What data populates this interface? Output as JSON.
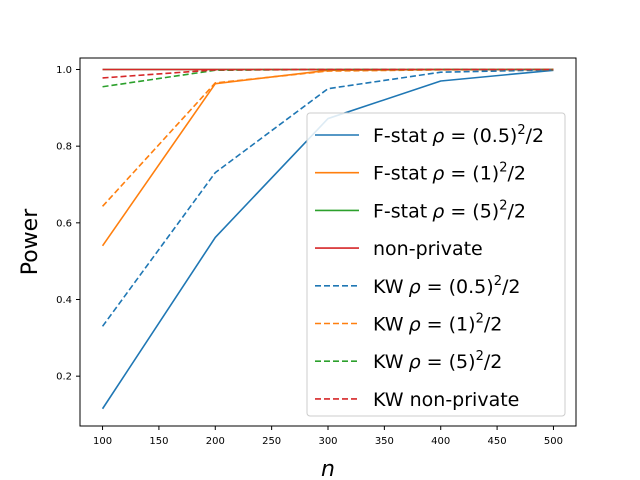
{
  "chart_data": {
    "type": "line",
    "title": "",
    "xlabel": "n",
    "ylabel": "Power",
    "x": [
      100,
      200,
      300,
      400,
      500
    ],
    "xlim": [
      80,
      520
    ],
    "ylim": [
      0.07,
      1.03
    ],
    "xticks": [
      100,
      150,
      200,
      250,
      300,
      350,
      400,
      450,
      500
    ],
    "yticks": [
      0.2,
      0.4,
      0.6,
      0.8,
      1.0
    ],
    "xtick_labels": [
      "100",
      "150",
      "200",
      "250",
      "300",
      "350",
      "400",
      "450",
      "500"
    ],
    "ytick_labels": [
      "0.2",
      "0.4",
      "0.6",
      "0.8",
      "1.0"
    ],
    "grid": false,
    "legend_position": "center-right",
    "series": [
      {
        "name": "F-stat",
        "rho_base": "(0.5)",
        "color": "#1f77b4",
        "dash": "solid",
        "values": [
          0.115,
          0.562,
          0.872,
          0.97,
          0.998
        ]
      },
      {
        "name": "F-stat",
        "rho_base": "(1)",
        "color": "#ff7f0e",
        "dash": "solid",
        "values": [
          0.54,
          0.963,
          0.998,
          1.0,
          1.0
        ]
      },
      {
        "name": "F-stat",
        "rho_base": "(5)",
        "color": "#2ca02c",
        "dash": "solid",
        "values": [
          1.0,
          1.0,
          1.0,
          1.0,
          1.0
        ]
      },
      {
        "name": "non-private",
        "rho_base": "",
        "color": "#d62728",
        "dash": "solid",
        "values": [
          1.0,
          1.0,
          1.0,
          1.0,
          1.0
        ]
      },
      {
        "name": "KW",
        "rho_base": "(0.5)",
        "color": "#1f77b4",
        "dash": "dashed",
        "values": [
          0.33,
          0.731,
          0.95,
          0.993,
          0.999
        ]
      },
      {
        "name": "KW",
        "rho_base": "(1)",
        "color": "#ff7f0e",
        "dash": "dashed",
        "values": [
          0.643,
          0.965,
          0.996,
          0.999,
          1.0
        ]
      },
      {
        "name": "KW",
        "rho_base": "(5)",
        "color": "#2ca02c",
        "dash": "dashed",
        "values": [
          0.955,
          0.998,
          1.0,
          1.0,
          1.0
        ]
      },
      {
        "name": "KW non-private",
        "rho_base": "",
        "color": "#d62728",
        "dash": "dashed",
        "values": [
          0.978,
          0.999,
          1.0,
          1.0,
          1.0
        ]
      }
    ]
  }
}
